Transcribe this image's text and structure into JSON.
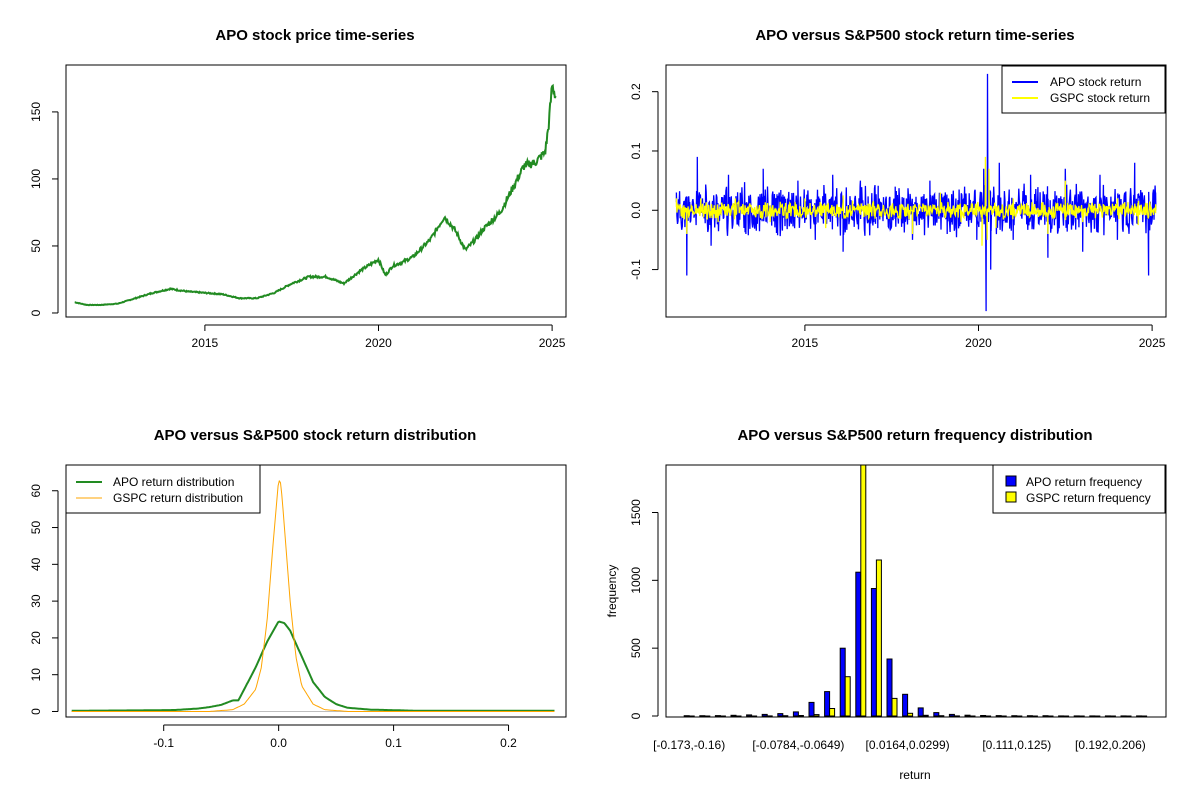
{
  "chart_data": [
    {
      "type": "line",
      "title": "APO stock price time-series",
      "xlabel": "",
      "ylabel": "",
      "xlim": [
        2011.0,
        2025.4
      ],
      "ylim": [
        -3,
        185
      ],
      "x_ticks": [
        2015,
        2020,
        2025
      ],
      "x_tick_labels": [
        "2015",
        "2020",
        "2025"
      ],
      "y_ticks": [
        0,
        50,
        100,
        150
      ],
      "y_tick_labels": [
        "0",
        "50",
        "100",
        "150"
      ],
      "grid": false,
      "series": [
        {
          "color": "#228b22",
          "x": [
            2011.25,
            2011.6,
            2012.0,
            2012.5,
            2013.0,
            2013.5,
            2014.0,
            2014.5,
            2015.0,
            2015.5,
            2016.0,
            2016.5,
            2017.0,
            2017.5,
            2018.0,
            2018.5,
            2019.0,
            2019.5,
            2020.0,
            2020.2,
            2020.4,
            2020.7,
            2021.0,
            2021.5,
            2021.9,
            2022.2,
            2022.5,
            2022.8,
            2023.0,
            2023.5,
            2023.9,
            2024.2,
            2024.5,
            2024.8,
            2024.9,
            2025.0,
            2025.1
          ],
          "y": [
            8,
            6,
            6,
            7,
            11,
            15,
            18,
            16,
            15,
            14,
            11,
            11,
            15,
            22,
            27,
            27,
            22,
            32,
            40,
            28,
            35,
            38,
            42,
            55,
            72,
            62,
            47,
            55,
            62,
            75,
            95,
            110,
            112,
            120,
            140,
            170,
            162
          ]
        }
      ]
    },
    {
      "type": "line",
      "title": "APO versus S&P500 stock return time-series",
      "xlabel": "",
      "ylabel": "",
      "xlim": [
        2011.0,
        2025.4
      ],
      "ylim": [
        -0.18,
        0.245
      ],
      "x_ticks": [
        2015,
        2020,
        2025
      ],
      "x_tick_labels": [
        "2015",
        "2020",
        "2025"
      ],
      "y_ticks": [
        -0.1,
        0.0,
        0.1,
        0.2
      ],
      "y_tick_labels": [
        "-0.1",
        "0.0",
        "0.1",
        "0.2"
      ],
      "grid": false,
      "legend": "top-right",
      "series": [
        {
          "name": "APO stock return",
          "color": "#0000ff",
          "x": [
            2011.3,
            2011.6,
            2011.9,
            2012.3,
            2012.8,
            2013.3,
            2013.8,
            2014.3,
            2014.8,
            2015.3,
            2015.8,
            2016.1,
            2016.6,
            2017.1,
            2017.6,
            2018.1,
            2018.6,
            2019.1,
            2019.6,
            2019.95,
            2020.15,
            2020.22,
            2020.26,
            2020.35,
            2020.6,
            2021.0,
            2021.5,
            2022.0,
            2022.5,
            2023.0,
            2023.5,
            2024.0,
            2024.5,
            2024.9,
            2025.1
          ],
          "y": [
            0.03,
            -0.11,
            0.09,
            -0.06,
            0.06,
            -0.04,
            0.07,
            -0.03,
            0.05,
            -0.05,
            0.06,
            -0.07,
            0.05,
            -0.03,
            0.04,
            -0.05,
            0.05,
            -0.04,
            0.04,
            -0.05,
            0.07,
            -0.17,
            0.23,
            -0.1,
            0.08,
            -0.05,
            0.06,
            -0.08,
            0.07,
            -0.07,
            0.06,
            -0.05,
            0.08,
            -0.11,
            0.03
          ]
        },
        {
          "name": "GSPC stock return",
          "color": "#ffff00",
          "x": [
            2011.3,
            2011.6,
            2012.0,
            2012.5,
            2013.0,
            2014.0,
            2015.0,
            2015.6,
            2016.1,
            2017.0,
            2018.1,
            2018.9,
            2019.5,
            2020.1,
            2020.2,
            2020.25,
            2020.3,
            2020.5,
            2021.0,
            2022.0,
            2022.5,
            2023.0,
            2024.0,
            2024.6,
            2025.1
          ],
          "y": [
            0.02,
            -0.04,
            0.02,
            -0.02,
            0.02,
            -0.02,
            0.02,
            -0.03,
            0.025,
            -0.01,
            -0.04,
            0.03,
            -0.02,
            -0.06,
            0.09,
            -0.05,
            0.07,
            -0.03,
            0.02,
            -0.04,
            0.05,
            -0.02,
            0.02,
            -0.025,
            0.01
          ]
        }
      ]
    },
    {
      "type": "line",
      "title": "APO versus S&P500 stock return distribution",
      "xlabel": "",
      "ylabel": "",
      "xlim": [
        -0.185,
        0.25
      ],
      "ylim": [
        -1.5,
        67
      ],
      "x_ticks": [
        -0.1,
        0.0,
        0.1,
        0.2
      ],
      "x_tick_labels": [
        "-0.1",
        "0.0",
        "0.1",
        "0.2"
      ],
      "y_ticks": [
        0,
        10,
        20,
        30,
        40,
        50,
        60
      ],
      "y_tick_labels": [
        "0",
        "10",
        "20",
        "30",
        "40",
        "50",
        "60"
      ],
      "grid": false,
      "legend": "top-left",
      "series": [
        {
          "name": "APO return distribution",
          "color": "#228b22",
          "x": [
            -0.18,
            -0.12,
            -0.09,
            -0.07,
            -0.06,
            -0.05,
            -0.04,
            -0.035,
            -0.03,
            -0.02,
            -0.01,
            0.0,
            0.005,
            0.01,
            0.02,
            0.03,
            0.04,
            0.05,
            0.06,
            0.08,
            0.12,
            0.24
          ],
          "y": [
            0.2,
            0.3,
            0.4,
            0.8,
            1.2,
            1.8,
            3.0,
            3.0,
            6.0,
            12.0,
            19.0,
            24.5,
            24.0,
            22.0,
            15.0,
            8.0,
            4.0,
            2.0,
            1.0,
            0.5,
            0.2,
            0.2
          ]
        },
        {
          "name": "GSPC return distribution",
          "color": "#ffa500",
          "x": [
            -0.18,
            -0.06,
            -0.04,
            -0.03,
            -0.02,
            -0.015,
            -0.01,
            -0.005,
            0.0,
            0.002,
            0.005,
            0.01,
            0.015,
            0.02,
            0.03,
            0.04,
            0.06,
            0.24
          ],
          "y": [
            0.0,
            0.0,
            0.5,
            2.0,
            6.0,
            12.0,
            25.0,
            45.0,
            63.0,
            62.0,
            50.0,
            30.0,
            15.0,
            7.0,
            2.0,
            0.5,
            0.0,
            0.0
          ]
        }
      ]
    },
    {
      "type": "bar",
      "title": "APO versus S&P500 return frequency distribution",
      "xlabel": "return",
      "ylabel": "frequency",
      "ylim": [
        0,
        1850
      ],
      "y_ticks": [
        0,
        500,
        1000,
        1500
      ],
      "y_tick_labels": [
        "0",
        "500",
        "1000",
        "1500"
      ],
      "x_tick_labels": [
        "[-0.173,-0.16)",
        "[-0.0784,-0.0649)",
        "[0.0164,0.0299)",
        "[0.111,0.125)",
        "[0.192,0.206)"
      ],
      "x_tick_positions": [
        0,
        7,
        14,
        21,
        27
      ],
      "legend": "top-right",
      "series": [
        {
          "name": "APO return frequency",
          "color": "#0000ff",
          "values": [
            2,
            2,
            3,
            5,
            8,
            12,
            18,
            30,
            100,
            180,
            500,
            1060,
            940,
            420,
            160,
            60,
            25,
            12,
            6,
            4,
            3,
            2,
            2,
            2,
            1,
            1,
            1,
            1,
            1,
            1
          ]
        },
        {
          "name": "GSPC return frequency",
          "color": "#ffff00",
          "values": [
            0,
            0,
            0,
            0,
            0,
            1,
            2,
            4,
            10,
            55,
            290,
            1850,
            1150,
            130,
            20,
            5,
            2,
            1,
            0,
            0,
            0,
            0,
            0,
            0,
            0,
            0,
            0,
            0,
            0,
            0
          ]
        }
      ]
    }
  ]
}
